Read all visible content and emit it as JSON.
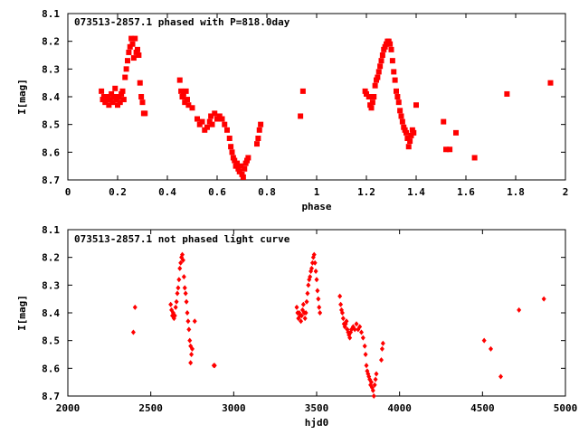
{
  "chart_data": [
    {
      "type": "scatter",
      "title": "073513-2857.1 phased with P=818.0day",
      "xlabel": "phase",
      "ylabel": "I[mag]",
      "xlim": [
        0,
        2
      ],
      "ylim": [
        8.1,
        8.7
      ],
      "y_inverted": true,
      "xticks": [
        "0",
        "0.2",
        "0.4",
        "0.6",
        "0.8",
        "1",
        "1.2",
        "1.4",
        "1.6",
        "1.8",
        "2"
      ],
      "yticks": [
        "8.1",
        "8.2",
        "8.3",
        "8.4",
        "8.5",
        "8.6",
        "8.7"
      ],
      "marker_color": "#ff0000",
      "grid": false,
      "series": [
        {
          "points": [
            [
              0.135,
              8.38
            ],
            [
              0.14,
              8.41
            ],
            [
              0.145,
              8.4
            ],
            [
              0.15,
              8.42
            ],
            [
              0.155,
              8.41
            ],
            [
              0.16,
              8.4
            ],
            [
              0.165,
              8.43
            ],
            [
              0.17,
              8.41
            ],
            [
              0.175,
              8.39
            ],
            [
              0.18,
              8.42
            ],
            [
              0.185,
              8.4
            ],
            [
              0.19,
              8.37
            ],
            [
              0.195,
              8.41
            ],
            [
              0.2,
              8.43
            ],
            [
              0.205,
              8.4
            ],
            [
              0.21,
              8.42
            ],
            [
              0.215,
              8.39
            ],
            [
              0.22,
              8.38
            ],
            [
              0.225,
              8.41
            ],
            [
              0.23,
              8.33
            ],
            [
              0.235,
              8.3
            ],
            [
              0.24,
              8.27
            ],
            [
              0.245,
              8.24
            ],
            [
              0.25,
              8.22
            ],
            [
              0.255,
              8.19
            ],
            [
              0.26,
              8.21
            ],
            [
              0.265,
              8.26
            ],
            [
              0.27,
              8.19
            ],
            [
              0.275,
              8.24
            ],
            [
              0.28,
              8.23
            ],
            [
              0.285,
              8.25
            ],
            [
              0.29,
              8.35
            ],
            [
              0.295,
              8.4
            ],
            [
              0.3,
              8.42
            ],
            [
              0.305,
              8.46
            ],
            [
              0.31,
              8.46
            ],
            [
              0.45,
              8.34
            ],
            [
              0.455,
              8.38
            ],
            [
              0.46,
              8.4
            ],
            [
              0.465,
              8.39
            ],
            [
              0.47,
              8.42
            ],
            [
              0.475,
              8.38
            ],
            [
              0.48,
              8.41
            ],
            [
              0.485,
              8.43
            ],
            [
              0.5,
              8.44
            ],
            [
              0.52,
              8.48
            ],
            [
              0.53,
              8.5
            ],
            [
              0.54,
              8.49
            ],
            [
              0.55,
              8.52
            ],
            [
              0.56,
              8.51
            ],
            [
              0.57,
              8.49
            ],
            [
              0.575,
              8.47
            ],
            [
              0.58,
              8.5
            ],
            [
              0.59,
              8.46
            ],
            [
              0.6,
              8.48
            ],
            [
              0.61,
              8.47
            ],
            [
              0.62,
              8.48
            ],
            [
              0.63,
              8.5
            ],
            [
              0.64,
              8.52
            ],
            [
              0.65,
              8.55
            ],
            [
              0.655,
              8.58
            ],
            [
              0.66,
              8.6
            ],
            [
              0.665,
              8.62
            ],
            [
              0.67,
              8.63
            ],
            [
              0.675,
              8.65
            ],
            [
              0.68,
              8.64
            ],
            [
              0.685,
              8.66
            ],
            [
              0.69,
              8.67
            ],
            [
              0.695,
              8.65
            ],
            [
              0.7,
              8.68
            ],
            [
              0.705,
              8.69
            ],
            [
              0.71,
              8.66
            ],
            [
              0.715,
              8.64
            ],
            [
              0.72,
              8.63
            ],
            [
              0.725,
              8.62
            ],
            [
              0.76,
              8.57
            ],
            [
              0.765,
              8.55
            ],
            [
              0.77,
              8.52
            ],
            [
              0.775,
              8.5
            ],
            [
              0.935,
              8.47
            ],
            [
              0.945,
              8.38
            ],
            [
              1.195,
              8.38
            ],
            [
              1.2,
              8.39
            ],
            [
              1.21,
              8.4
            ],
            [
              1.215,
              8.43
            ],
            [
              1.22,
              8.44
            ],
            [
              1.225,
              8.42
            ],
            [
              1.23,
              8.4
            ],
            [
              1.235,
              8.36
            ],
            [
              1.24,
              8.34
            ],
            [
              1.245,
              8.33
            ],
            [
              1.25,
              8.31
            ],
            [
              1.255,
              8.29
            ],
            [
              1.26,
              8.27
            ],
            [
              1.265,
              8.25
            ],
            [
              1.27,
              8.23
            ],
            [
              1.275,
              8.22
            ],
            [
              1.28,
              8.21
            ],
            [
              1.285,
              8.2
            ],
            [
              1.29,
              8.2
            ],
            [
              1.295,
              8.21
            ],
            [
              1.3,
              8.23
            ],
            [
              1.305,
              8.27
            ],
            [
              1.31,
              8.31
            ],
            [
              1.315,
              8.34
            ],
            [
              1.32,
              8.38
            ],
            [
              1.325,
              8.4
            ],
            [
              1.33,
              8.42
            ],
            [
              1.335,
              8.45
            ],
            [
              1.34,
              8.47
            ],
            [
              1.345,
              8.49
            ],
            [
              1.35,
              8.51
            ],
            [
              1.355,
              8.52
            ],
            [
              1.36,
              8.53
            ],
            [
              1.365,
              8.55
            ],
            [
              1.37,
              8.58
            ],
            [
              1.375,
              8.56
            ],
            [
              1.38,
              8.54
            ],
            [
              1.385,
              8.52
            ],
            [
              1.39,
              8.53
            ],
            [
              1.4,
              8.43
            ],
            [
              1.51,
              8.49
            ],
            [
              1.52,
              8.59
            ],
            [
              1.535,
              8.59
            ],
            [
              1.56,
              8.53
            ],
            [
              1.635,
              8.62
            ],
            [
              1.765,
              8.39
            ],
            [
              1.94,
              8.35
            ]
          ]
        }
      ]
    },
    {
      "type": "scatter",
      "title": "073513-2857.1 not phased light curve",
      "xlabel": "hjd0",
      "ylabel": "I[mag]",
      "xlim": [
        2000,
        5000
      ],
      "ylim": [
        8.1,
        8.7
      ],
      "y_inverted": true,
      "xticks": [
        "2000",
        "2500",
        "3000",
        "3500",
        "4000",
        "4500",
        "5000"
      ],
      "yticks": [
        "8.1",
        "8.2",
        "8.3",
        "8.4",
        "8.5",
        "8.6",
        "8.7"
      ],
      "marker_color": "#ff0000",
      "grid": false,
      "series": [
        {
          "points": [
            [
              2395,
              8.47
            ],
            [
              2405,
              8.38
            ],
            [
              2620,
              8.37
            ],
            [
              2625,
              8.39
            ],
            [
              2630,
              8.41
            ],
            [
              2635,
              8.4
            ],
            [
              2640,
              8.42
            ],
            [
              2645,
              8.41
            ],
            [
              2650,
              8.38
            ],
            [
              2655,
              8.36
            ],
            [
              2660,
              8.33
            ],
            [
              2665,
              8.31
            ],
            [
              2670,
              8.28
            ],
            [
              2675,
              8.24
            ],
            [
              2680,
              8.22
            ],
            [
              2685,
              8.2
            ],
            [
              2690,
              8.19
            ],
            [
              2695,
              8.21
            ],
            [
              2700,
              8.27
            ],
            [
              2705,
              8.31
            ],
            [
              2710,
              8.33
            ],
            [
              2715,
              8.36
            ],
            [
              2720,
              8.4
            ],
            [
              2725,
              8.43
            ],
            [
              2730,
              8.46
            ],
            [
              2735,
              8.5
            ],
            [
              2740,
              8.52
            ],
            [
              2745,
              8.55
            ],
            [
              2750,
              8.53
            ],
            [
              2740,
              8.58
            ],
            [
              2765,
              8.43
            ],
            [
              2880,
              8.59
            ],
            [
              2885,
              8.59
            ],
            [
              3380,
              8.38
            ],
            [
              3385,
              8.4
            ],
            [
              3390,
              8.42
            ],
            [
              3395,
              8.4
            ],
            [
              3400,
              8.41
            ],
            [
              3405,
              8.43
            ],
            [
              3410,
              8.41
            ],
            [
              3415,
              8.39
            ],
            [
              3420,
              8.37
            ],
            [
              3425,
              8.4
            ],
            [
              3430,
              8.42
            ],
            [
              3435,
              8.4
            ],
            [
              3440,
              8.36
            ],
            [
              3445,
              8.33
            ],
            [
              3450,
              8.3
            ],
            [
              3455,
              8.28
            ],
            [
              3460,
              8.27
            ],
            [
              3465,
              8.25
            ],
            [
              3470,
              8.24
            ],
            [
              3475,
              8.22
            ],
            [
              3480,
              8.2
            ],
            [
              3485,
              8.19
            ],
            [
              3490,
              8.22
            ],
            [
              3495,
              8.25
            ],
            [
              3500,
              8.28
            ],
            [
              3505,
              8.32
            ],
            [
              3510,
              8.35
            ],
            [
              3515,
              8.38
            ],
            [
              3520,
              8.4
            ],
            [
              3640,
              8.34
            ],
            [
              3645,
              8.37
            ],
            [
              3650,
              8.39
            ],
            [
              3655,
              8.4
            ],
            [
              3660,
              8.42
            ],
            [
              3665,
              8.44
            ],
            [
              3670,
              8.45
            ],
            [
              3675,
              8.44
            ],
            [
              3680,
              8.43
            ],
            [
              3685,
              8.46
            ],
            [
              3690,
              8.47
            ],
            [
              3695,
              8.48
            ],
            [
              3700,
              8.49
            ],
            [
              3705,
              8.47
            ],
            [
              3710,
              8.46
            ],
            [
              3720,
              8.45
            ],
            [
              3730,
              8.46
            ],
            [
              3740,
              8.44
            ],
            [
              3750,
              8.46
            ],
            [
              3760,
              8.45
            ],
            [
              3770,
              8.47
            ],
            [
              3780,
              8.49
            ],
            [
              3790,
              8.52
            ],
            [
              3795,
              8.55
            ],
            [
              3800,
              8.59
            ],
            [
              3805,
              8.61
            ],
            [
              3810,
              8.62
            ],
            [
              3815,
              8.63
            ],
            [
              3820,
              8.64
            ],
            [
              3825,
              8.66
            ],
            [
              3830,
              8.65
            ],
            [
              3835,
              8.67
            ],
            [
              3840,
              8.68
            ],
            [
              3845,
              8.7
            ],
            [
              3850,
              8.66
            ],
            [
              3855,
              8.64
            ],
            [
              3860,
              8.62
            ],
            [
              3890,
              8.57
            ],
            [
              3895,
              8.53
            ],
            [
              3900,
              8.51
            ],
            [
              4510,
              8.5
            ],
            [
              4550,
              8.53
            ],
            [
              4610,
              8.63
            ],
            [
              4720,
              8.39
            ],
            [
              4870,
              8.35
            ]
          ]
        }
      ]
    }
  ]
}
